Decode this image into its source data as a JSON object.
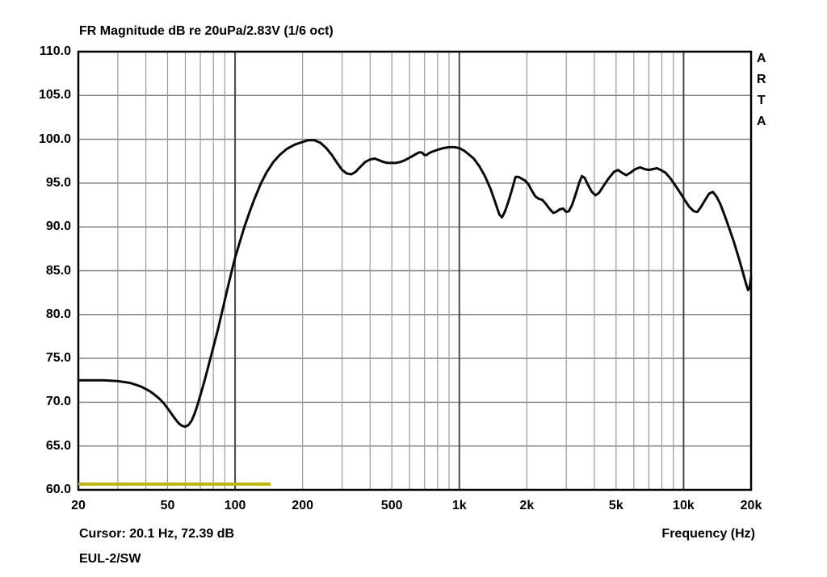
{
  "window": {
    "app_name": "ARTA",
    "background": "#ffffff",
    "text_color": "#000000"
  },
  "chart_data": {
    "type": "line",
    "title": "FR Magnitude dB re 20uPa/2.83V (1/6 oct)",
    "xlabel": "Frequency (Hz)",
    "ylabel": "",
    "x_scale": "log",
    "x_range": [
      20,
      20000
    ],
    "y_range": [
      60,
      110
    ],
    "y_tick_step": 5,
    "y_tick_labels": [
      "110.0",
      "105.0",
      "100.0",
      "95.0",
      "90.0",
      "85.0",
      "80.0",
      "75.0",
      "70.0",
      "65.0",
      "60.0"
    ],
    "x_ticks": [
      {
        "f": 20,
        "label": "20"
      },
      {
        "f": 50,
        "label": "50"
      },
      {
        "f": 100,
        "label": "100"
      },
      {
        "f": 200,
        "label": "200"
      },
      {
        "f": 500,
        "label": "500"
      },
      {
        "f": 1000,
        "label": "1k"
      },
      {
        "f": 2000,
        "label": "2k"
      },
      {
        "f": 5000,
        "label": "5k"
      },
      {
        "f": 10000,
        "label": "10k"
      },
      {
        "f": 20000,
        "label": "20k"
      }
    ],
    "minor_gridlines_hz": [
      30,
      40,
      50,
      60,
      70,
      80,
      90,
      200,
      300,
      400,
      500,
      600,
      700,
      800,
      900,
      2000,
      3000,
      4000,
      5000,
      6000,
      7000,
      8000,
      9000
    ],
    "decade_gridlines_hz": [
      100,
      1000,
      10000
    ],
    "grid_on": true,
    "colors": {
      "frame": "#000000",
      "h_grid": "#7a7a7a",
      "v_grid_minor": "#9a9a9a",
      "v_grid_decade": "#4a4a4a",
      "curve": "#0a0a0a",
      "marker_line": "#bfb40c"
    },
    "series": [
      {
        "name": "fr-magnitude-curve",
        "color": "#0a0a0a",
        "width": 3,
        "points": [
          [
            20,
            72.5
          ],
          [
            22,
            72.5
          ],
          [
            24,
            72.5
          ],
          [
            26,
            72.5
          ],
          [
            28,
            72.45
          ],
          [
            30,
            72.4
          ],
          [
            32,
            72.3
          ],
          [
            34,
            72.2
          ],
          [
            36,
            72.0
          ],
          [
            38,
            71.8
          ],
          [
            40,
            71.5
          ],
          [
            42,
            71.2
          ],
          [
            44,
            70.8
          ],
          [
            46,
            70.4
          ],
          [
            48,
            69.9
          ],
          [
            50,
            69.3
          ],
          [
            52,
            68.7
          ],
          [
            54,
            68.1
          ],
          [
            56,
            67.6
          ],
          [
            58,
            67.3
          ],
          [
            60,
            67.2
          ],
          [
            62,
            67.4
          ],
          [
            64,
            67.9
          ],
          [
            66,
            68.7
          ],
          [
            68,
            69.7
          ],
          [
            70,
            70.8
          ],
          [
            73,
            72.4
          ],
          [
            76,
            74.1
          ],
          [
            80,
            76.3
          ],
          [
            84,
            78.4
          ],
          [
            88,
            80.6
          ],
          [
            92,
            82.7
          ],
          [
            96,
            84.7
          ],
          [
            100,
            86.5
          ],
          [
            105,
            88.3
          ],
          [
            110,
            90.0
          ],
          [
            116,
            91.7
          ],
          [
            122,
            93.2
          ],
          [
            130,
            94.9
          ],
          [
            138,
            96.2
          ],
          [
            148,
            97.4
          ],
          [
            158,
            98.2
          ],
          [
            170,
            98.9
          ],
          [
            185,
            99.4
          ],
          [
            200,
            99.7
          ],
          [
            212,
            99.9
          ],
          [
            225,
            99.9
          ],
          [
            240,
            99.6
          ],
          [
            255,
            99.0
          ],
          [
            270,
            98.2
          ],
          [
            285,
            97.3
          ],
          [
            300,
            96.5
          ],
          [
            315,
            96.1
          ],
          [
            330,
            96.0
          ],
          [
            345,
            96.3
          ],
          [
            360,
            96.8
          ],
          [
            380,
            97.4
          ],
          [
            400,
            97.7
          ],
          [
            420,
            97.8
          ],
          [
            440,
            97.6
          ],
          [
            460,
            97.4
          ],
          [
            480,
            97.3
          ],
          [
            500,
            97.3
          ],
          [
            520,
            97.3
          ],
          [
            545,
            97.4
          ],
          [
            570,
            97.6
          ],
          [
            600,
            97.9
          ],
          [
            630,
            98.2
          ],
          [
            660,
            98.5
          ],
          [
            680,
            98.5
          ],
          [
            700,
            98.2
          ],
          [
            715,
            98.2
          ],
          [
            730,
            98.4
          ],
          [
            760,
            98.6
          ],
          [
            800,
            98.8
          ],
          [
            850,
            99.0
          ],
          [
            900,
            99.1
          ],
          [
            950,
            99.1
          ],
          [
            1000,
            99.0
          ],
          [
            1050,
            98.7
          ],
          [
            1100,
            98.3
          ],
          [
            1160,
            97.8
          ],
          [
            1230,
            96.9
          ],
          [
            1300,
            95.8
          ],
          [
            1380,
            94.3
          ],
          [
            1450,
            92.7
          ],
          [
            1510,
            91.4
          ],
          [
            1550,
            91.1
          ],
          [
            1600,
            91.8
          ],
          [
            1660,
            93.0
          ],
          [
            1720,
            94.3
          ],
          [
            1780,
            95.7
          ],
          [
            1840,
            95.7
          ],
          [
            1900,
            95.5
          ],
          [
            1960,
            95.3
          ],
          [
            2030,
            94.9
          ],
          [
            2100,
            94.2
          ],
          [
            2180,
            93.5
          ],
          [
            2260,
            93.2
          ],
          [
            2340,
            93.1
          ],
          [
            2420,
            92.7
          ],
          [
            2520,
            92.1
          ],
          [
            2620,
            91.6
          ],
          [
            2700,
            91.7
          ],
          [
            2800,
            92.0
          ],
          [
            2900,
            92.1
          ],
          [
            3000,
            91.7
          ],
          [
            3080,
            91.8
          ],
          [
            3180,
            92.5
          ],
          [
            3300,
            93.7
          ],
          [
            3420,
            95.0
          ],
          [
            3520,
            95.8
          ],
          [
            3620,
            95.6
          ],
          [
            3750,
            94.8
          ],
          [
            3900,
            94.0
          ],
          [
            4050,
            93.6
          ],
          [
            4200,
            93.9
          ],
          [
            4400,
            94.7
          ],
          [
            4650,
            95.6
          ],
          [
            4900,
            96.3
          ],
          [
            5100,
            96.5
          ],
          [
            5300,
            96.2
          ],
          [
            5550,
            95.9
          ],
          [
            5800,
            96.2
          ],
          [
            6100,
            96.6
          ],
          [
            6400,
            96.8
          ],
          [
            6700,
            96.6
          ],
          [
            7000,
            96.5
          ],
          [
            7300,
            96.6
          ],
          [
            7600,
            96.7
          ],
          [
            7900,
            96.5
          ],
          [
            8300,
            96.2
          ],
          [
            8700,
            95.6
          ],
          [
            9100,
            94.9
          ],
          [
            9600,
            94.0
          ],
          [
            10100,
            93.1
          ],
          [
            10600,
            92.3
          ],
          [
            11100,
            91.8
          ],
          [
            11500,
            91.7
          ],
          [
            11900,
            92.2
          ],
          [
            12500,
            93.1
          ],
          [
            13000,
            93.8
          ],
          [
            13500,
            94.0
          ],
          [
            14000,
            93.5
          ],
          [
            14600,
            92.6
          ],
          [
            15300,
            91.2
          ],
          [
            16000,
            89.8
          ],
          [
            16800,
            88.2
          ],
          [
            17600,
            86.5
          ],
          [
            18400,
            84.8
          ],
          [
            19000,
            83.5
          ],
          [
            19400,
            82.8
          ],
          [
            19700,
            83.0
          ],
          [
            20000,
            84.3
          ]
        ]
      },
      {
        "name": "marker-segment",
        "color": "#bfb40c",
        "width": 4,
        "points": [
          [
            20,
            60.65
          ],
          [
            144,
            60.65
          ]
        ]
      }
    ],
    "watermark": "ARTA",
    "legend_position": "none"
  },
  "footer": {
    "cursor_text": "Cursor: 20.1 Hz, 72.39 dB",
    "file_label": "EUL-2/SW",
    "xlabel": "Frequency (Hz)"
  }
}
